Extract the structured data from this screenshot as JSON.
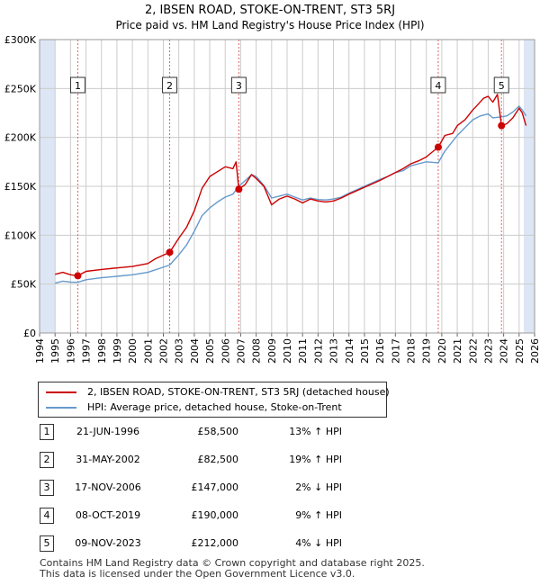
{
  "title": "2, IBSEN ROAD, STOKE-ON-TRENT, ST3 5RJ",
  "subtitle": "Price paid vs. HM Land Registry's House Price Index (HPI)",
  "colors": {
    "property": "#cc0000",
    "hpi": "#6699cc",
    "shade": "#dde6f4",
    "grid": "#cccccc",
    "marker_line": "#dd6666"
  },
  "chart_data": {
    "type": "line",
    "title": "2, IBSEN ROAD, STOKE-ON-TRENT, ST3 5RJ",
    "subtitle": "Price paid vs. HM Land Registry's House Price Index (HPI)",
    "xlabel": "",
    "ylabel": "",
    "xlim": [
      1994,
      2026
    ],
    "ylim": [
      0,
      300000
    ],
    "grid": true,
    "legend_position": "bottom",
    "x_ticks": [
      "1994",
      "1995",
      "1996",
      "1997",
      "1998",
      "1999",
      "2000",
      "2001",
      "2002",
      "2003",
      "2004",
      "2005",
      "2006",
      "2007",
      "2008",
      "2009",
      "2010",
      "2011",
      "2012",
      "2013",
      "2014",
      "2015",
      "2016",
      "2017",
      "2018",
      "2019",
      "2020",
      "2021",
      "2022",
      "2023",
      "2024",
      "2025",
      "2026"
    ],
    "y_ticks": [
      {
        "value": 0,
        "label": "£0"
      },
      {
        "value": 50000,
        "label": "£50K"
      },
      {
        "value": 100000,
        "label": "£100K"
      },
      {
        "value": 150000,
        "label": "£150K"
      },
      {
        "value": 200000,
        "label": "£200K"
      },
      {
        "value": 250000,
        "label": "£250K"
      },
      {
        "value": 300000,
        "label": "£300K"
      }
    ],
    "shaded_ranges": [
      [
        1994,
        1995
      ],
      [
        2025.3,
        2026
      ]
    ],
    "series": [
      {
        "name": "2, IBSEN ROAD, STOKE-ON-TRENT, ST3 5RJ (detached house)",
        "color": "#cc0000",
        "x": [
          1995.0,
          1995.5,
          1996.0,
          1996.47,
          1997.0,
          1998.0,
          1999.0,
          2000.0,
          2001.0,
          2001.5,
          2002.41,
          2003.0,
          2003.5,
          2004.0,
          2004.5,
          2005.0,
          2005.5,
          2006.0,
          2006.5,
          2006.7,
          2006.88,
          2007.3,
          2007.7,
          2008.0,
          2008.5,
          2009.0,
          2009.5,
          2010.0,
          2010.5,
          2011.0,
          2011.5,
          2012.0,
          2012.5,
          2013.0,
          2013.5,
          2014.0,
          2015.0,
          2016.0,
          2016.5,
          2017.0,
          2017.5,
          2018.0,
          2018.5,
          2019.0,
          2019.3,
          2019.77,
          2020.2,
          2020.7,
          2021.0,
          2021.5,
          2022.0,
          2022.3,
          2022.7,
          2023.0,
          2023.3,
          2023.6,
          2023.86,
          2024.2,
          2024.6,
          2025.0,
          2025.2,
          2025.45
        ],
        "values": [
          60000,
          62000,
          59500,
          58500,
          63000,
          65000,
          66500,
          68000,
          71000,
          76000,
          82500,
          97000,
          108000,
          125000,
          148000,
          160000,
          165000,
          170000,
          168000,
          175000,
          147000,
          152000,
          162000,
          158000,
          150000,
          131000,
          137000,
          140000,
          137000,
          133000,
          137000,
          135000,
          134000,
          135000,
          138000,
          142000,
          149000,
          156000,
          160000,
          164000,
          168000,
          173000,
          176000,
          180000,
          184000,
          190000,
          202000,
          204000,
          212000,
          218000,
          228000,
          233000,
          240000,
          242000,
          236000,
          244000,
          212000,
          214000,
          220000,
          230000,
          225000,
          212000
        ]
      },
      {
        "name": "HPI: Average price, detached house, Stoke-on-Trent",
        "color": "#6699cc",
        "x": [
          1995.0,
          1995.5,
          1996.0,
          1996.47,
          1997.0,
          1998.0,
          1999.0,
          2000.0,
          2001.0,
          2002.41,
          2003.0,
          2003.5,
          2004.0,
          2004.5,
          2005.0,
          2005.5,
          2006.0,
          2006.5,
          2006.88,
          2007.3,
          2007.7,
          2008.0,
          2008.5,
          2009.0,
          2009.5,
          2010.0,
          2010.5,
          2011.0,
          2011.5,
          2012.0,
          2012.5,
          2013.0,
          2013.5,
          2014.0,
          2015.0,
          2016.0,
          2016.5,
          2017.0,
          2017.5,
          2018.0,
          2018.5,
          2019.0,
          2019.77,
          2020.2,
          2020.7,
          2021.0,
          2021.5,
          2022.0,
          2022.5,
          2023.0,
          2023.3,
          2023.86,
          2024.2,
          2024.6,
          2025.0,
          2025.2,
          2025.45
        ],
        "values": [
          51000,
          53000,
          52000,
          51800,
          54500,
          56500,
          58000,
          59500,
          62000,
          69500,
          80000,
          90000,
          104000,
          120000,
          128000,
          134000,
          139000,
          142000,
          150000,
          156000,
          162000,
          160000,
          151000,
          138000,
          140000,
          142000,
          139000,
          136000,
          138000,
          136500,
          136000,
          137000,
          139000,
          143000,
          150000,
          157000,
          160000,
          164000,
          166000,
          171000,
          173000,
          175000,
          174000,
          186000,
          196000,
          202000,
          210000,
          218000,
          222000,
          224000,
          220000,
          221000,
          222000,
          226000,
          232000,
          228000,
          222000
        ]
      }
    ],
    "transactions": [
      {
        "id": "1",
        "date": "21-JUN-1996",
        "price": "£58,500",
        "hpi": "13% ↑ HPI",
        "x": 1996.47,
        "value": 58500
      },
      {
        "id": "2",
        "date": "31-MAY-2002",
        "price": "£82,500",
        "hpi": "19% ↑ HPI",
        "x": 2002.41,
        "value": 82500
      },
      {
        "id": "3",
        "date": "17-NOV-2006",
        "price": "£147,000",
        "hpi": "2% ↓ HPI",
        "x": 2006.88,
        "value": 147000
      },
      {
        "id": "4",
        "date": "08-OCT-2019",
        "price": "£190,000",
        "hpi": "9% ↑ HPI",
        "x": 2019.77,
        "value": 190000
      },
      {
        "id": "5",
        "date": "09-NOV-2023",
        "price": "£212,000",
        "hpi": "4% ↓ HPI",
        "x": 2023.86,
        "value": 212000
      }
    ]
  },
  "legend": {
    "property_label": "2, IBSEN ROAD, STOKE-ON-TRENT, ST3 5RJ (detached house)",
    "hpi_label": "HPI: Average price, detached house, Stoke-on-Trent"
  },
  "footer": {
    "line1": "Contains HM Land Registry data © Crown copyright and database right 2025.",
    "line2": "This data is licensed under the Open Government Licence v3.0."
  }
}
